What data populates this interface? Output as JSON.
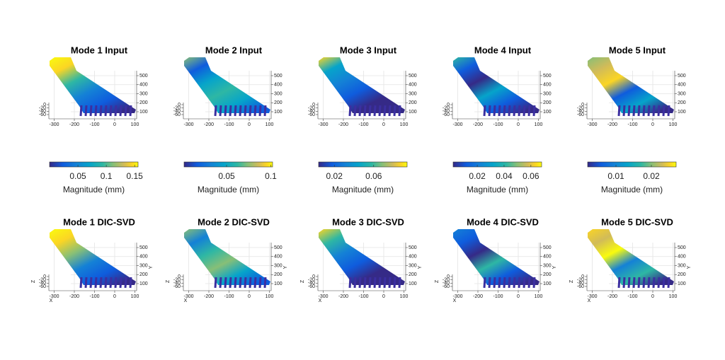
{
  "axis_ticks": {
    "x": [
      -300,
      -200,
      -100,
      0,
      100
    ],
    "y": [
      100,
      200,
      300,
      400,
      500
    ],
    "z": [
      0,
      -20,
      -40,
      -60
    ]
  },
  "axis_labels": {
    "x": "X",
    "y": "Y",
    "z": "Z"
  },
  "input_titles": [
    "Mode 1 Input",
    "Mode 2 Input",
    "Mode 3 Input",
    "Mode 4 Input",
    "Mode 5 Input"
  ],
  "svd_titles": [
    "Mode 1 DIC-SVD",
    "Mode 2 DIC-SVD",
    "Mode 3 DIC-SVD",
    "Mode 4 DIC-SVD",
    "Mode 5 DIC-SVD"
  ],
  "colorbars": [
    {
      "label": "Magnitude (mm)",
      "clim": [
        0,
        0.156
      ],
      "ticks": [
        0.05,
        0.1,
        0.15
      ]
    },
    {
      "label": "Magnitude (mm)",
      "clim": [
        0.002,
        0.102
      ],
      "ticks": [
        0.05,
        0.1
      ]
    },
    {
      "label": "Magnitude (mm)",
      "clim": [
        0.004,
        0.094
      ],
      "ticks": [
        0.02,
        0.06
      ]
    },
    {
      "label": "Magnitude (mm)",
      "clim": [
        0.002,
        0.068
      ],
      "ticks": [
        0.02,
        0.04,
        0.06
      ]
    },
    {
      "label": "Magnitude (mm)",
      "clim": [
        0.002,
        0.027
      ],
      "ticks": [
        0.01,
        0.02
      ]
    }
  ]
}
